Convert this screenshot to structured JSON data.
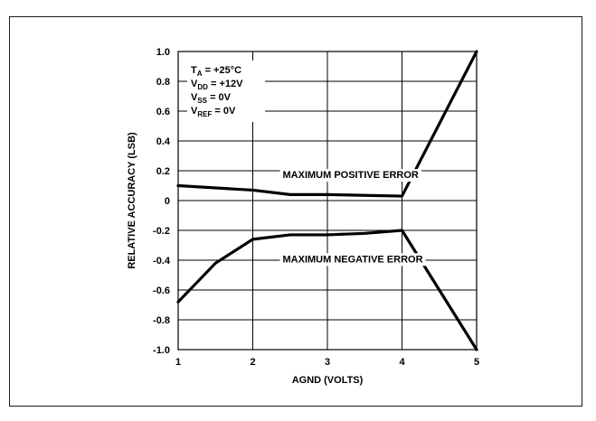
{
  "chart_data": {
    "type": "line",
    "xlabel": "AGND (VOLTS)",
    "ylabel": "RELATIVE ACCURACY (LSB)",
    "xlim": [
      1,
      5
    ],
    "ylim": [
      -1.0,
      1.0
    ],
    "x_ticks": [
      1,
      2,
      3,
      4,
      5
    ],
    "x_tick_labels": [
      "1",
      "2",
      "3",
      "4",
      "5"
    ],
    "y_ticks": [
      1.0,
      0.8,
      0.6,
      0.4,
      0.2,
      0,
      -0.2,
      -0.4,
      -0.6,
      -0.8,
      -1.0
    ],
    "y_tick_labels": [
      "1.0",
      "0.8",
      "0.6",
      "0.4",
      "0.2",
      "0",
      "-0.2",
      "-0.4",
      "-0.6",
      "-0.8",
      "-1.0"
    ],
    "grid": true,
    "series": [
      {
        "name": "MAXIMUM POSITIVE ERROR",
        "x": [
          1,
          2,
          2.5,
          3,
          3.5,
          4,
          5
        ],
        "values": [
          0.1,
          0.07,
          0.04,
          0.04,
          0.035,
          0.03,
          1.0
        ]
      },
      {
        "name": "MAXIMUM NEGATIVE ERROR",
        "x": [
          1,
          1.5,
          2,
          2.5,
          3,
          3.5,
          4,
          5
        ],
        "values": [
          -0.68,
          -0.42,
          -0.26,
          -0.23,
          -0.23,
          -0.22,
          -0.2,
          -1.0
        ]
      }
    ],
    "conditions": [
      {
        "symbol": "T",
        "sub": "A",
        "value": "= +25°C"
      },
      {
        "symbol": "V",
        "sub": "DD",
        "value": "= +12V"
      },
      {
        "symbol": "V",
        "sub": "SS",
        "value": "= 0V"
      },
      {
        "symbol": "V",
        "sub": "REF",
        "value": "= 0V"
      }
    ],
    "colors": {
      "line": "#000000",
      "grid": "#000000",
      "frame": "#000000"
    }
  }
}
